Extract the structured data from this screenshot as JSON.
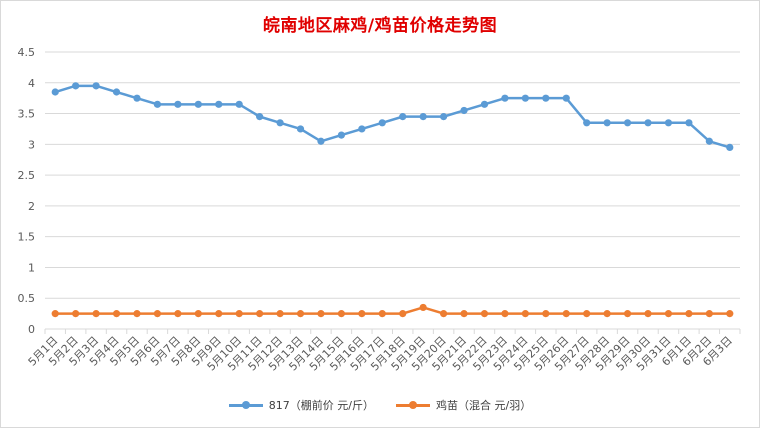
{
  "chart_data": {
    "type": "line",
    "title": "皖南地区麻鸡/鸡苗价格走势图",
    "categories": [
      "5月1日",
      "5月2日",
      "5月3日",
      "5月4日",
      "5月5日",
      "5月6日",
      "5月7日",
      "5月8日",
      "5月9日",
      "5月10日",
      "5月11日",
      "5月12日",
      "5月13日",
      "5月14日",
      "5月15日",
      "5月16日",
      "5月17日",
      "5月18日",
      "5月19日",
      "5月20日",
      "5月21日",
      "5月22日",
      "5月23日",
      "5月24日",
      "5月25日",
      "5月26日",
      "5月27日",
      "5月28日",
      "5月29日",
      "5月30日",
      "5月31日",
      "6月1日",
      "6月2日",
      "6月3日"
    ],
    "ylim": [
      0,
      4.5
    ],
    "yticks": [
      "0",
      "0.5",
      "1",
      "1.5",
      "2",
      "2.5",
      "3",
      "3.5",
      "4",
      "4.5"
    ],
    "grid": true,
    "legend_position": "bottom",
    "series": [
      {
        "name": "817（棚前价 元/斤）",
        "color": "#5b9bd5",
        "values": [
          3.85,
          3.95,
          3.95,
          3.85,
          3.75,
          3.65,
          3.65,
          3.65,
          3.65,
          3.65,
          3.45,
          3.35,
          3.25,
          3.05,
          3.15,
          3.25,
          3.35,
          3.45,
          3.45,
          3.45,
          3.55,
          3.65,
          3.75,
          3.75,
          3.75,
          3.75,
          3.35,
          3.35,
          3.35,
          3.35,
          3.35,
          3.35,
          3.05,
          2.95
        ]
      },
      {
        "name": "鸡苗（混合 元/羽）",
        "color": "#ed7d31",
        "values": [
          0.25,
          0.25,
          0.25,
          0.25,
          0.25,
          0.25,
          0.25,
          0.25,
          0.25,
          0.25,
          0.25,
          0.25,
          0.25,
          0.25,
          0.25,
          0.25,
          0.25,
          0.25,
          0.35,
          0.25,
          0.25,
          0.25,
          0.25,
          0.25,
          0.25,
          0.25,
          0.25,
          0.25,
          0.25,
          0.25,
          0.25,
          0.25,
          0.25,
          0.25
        ]
      }
    ]
  }
}
